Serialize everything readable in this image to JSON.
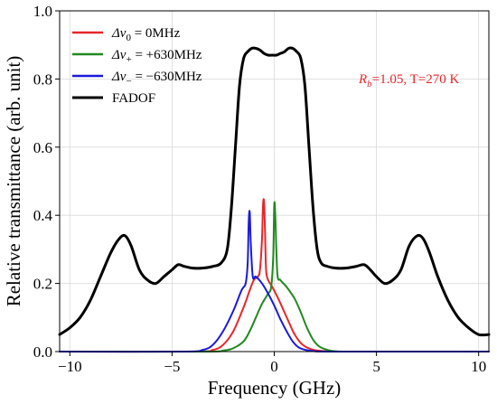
{
  "chart_data": {
    "type": "line",
    "title": "",
    "xlabel": "Frequency (GHz)",
    "ylabel": "Relative transmittance (arb. unit)",
    "xlim": [
      -10.5,
      10.5
    ],
    "ylim": [
      0,
      1.0
    ],
    "xticks": [
      -10,
      -5,
      0,
      5,
      10
    ],
    "xtick_labels": [
      "−10",
      "−5",
      "0",
      "5",
      "10"
    ],
    "yticks": [
      0.0,
      0.2,
      0.4,
      0.6,
      0.8,
      1.0
    ],
    "ytick_labels": [
      "0.0",
      "0.2",
      "0.4",
      "0.6",
      "0.8",
      "1.0"
    ],
    "grid": true,
    "legend_position": "top-left",
    "annotation": {
      "text_main": "R",
      "text_sub": "b",
      "text_rest": "=1.05, T=270 K",
      "color": "#e8262a"
    },
    "series": [
      {
        "name_prefix": "Δv",
        "name_sub": "0",
        "name_rest": " = 0MHz",
        "color": "#e8262a",
        "x": [
          -10.5,
          -4,
          -3,
          -2.5,
          -2,
          -1.5,
          -1.2,
          -1.0,
          -0.8,
          -0.7,
          -0.6,
          -0.55,
          -0.5,
          -0.45,
          -0.4,
          -0.3,
          -0.1,
          0.2,
          0.5,
          0.8,
          1.0,
          1.3,
          1.6,
          2.0,
          2.5,
          3.0,
          4.0,
          10.5
        ],
        "y": [
          0,
          0,
          0.005,
          0.02,
          0.06,
          0.13,
          0.18,
          0.21,
          0.22,
          0.24,
          0.33,
          0.43,
          0.44,
          0.35,
          0.24,
          0.21,
          0.19,
          0.155,
          0.115,
          0.075,
          0.05,
          0.025,
          0.012,
          0.004,
          0.001,
          0,
          0,
          0
        ]
      },
      {
        "name_prefix": "Δv",
        "name_sub": "+",
        "name_rest": " = +630MHz",
        "color": "#1f8a1f",
        "x": [
          -10.5,
          -3.5,
          -2.5,
          -2,
          -1.5,
          -1.2,
          -0.9,
          -0.6,
          -0.3,
          -0.15,
          -0.05,
          0,
          0.05,
          0.15,
          0.3,
          0.6,
          1.0,
          1.3,
          1.6,
          1.9,
          2.2,
          2.6,
          3.0,
          4.0,
          10.5
        ],
        "y": [
          0,
          0,
          0.003,
          0.01,
          0.03,
          0.06,
          0.1,
          0.14,
          0.17,
          0.19,
          0.28,
          0.43,
          0.4,
          0.23,
          0.21,
          0.19,
          0.155,
          0.115,
          0.07,
          0.035,
          0.015,
          0.005,
          0.001,
          0,
          0
        ]
      },
      {
        "name_prefix": "Δv",
        "name_sub": "−",
        "name_rest": " = −630MHz",
        "color": "#1a1adc",
        "x": [
          -10.5,
          -4.5,
          -3.5,
          -3,
          -2.5,
          -2,
          -1.6,
          -1.4,
          -1.3,
          -1.25,
          -1.2,
          -1.15,
          -1.05,
          -0.9,
          -0.6,
          -0.3,
          0,
          0.3,
          0.6,
          0.9,
          1.2,
          1.6,
          2.0,
          3.0,
          10.5
        ],
        "y": [
          0,
          0,
          0.005,
          0.02,
          0.06,
          0.12,
          0.18,
          0.2,
          0.26,
          0.38,
          0.41,
          0.32,
          0.22,
          0.22,
          0.2,
          0.17,
          0.135,
          0.095,
          0.06,
          0.03,
          0.012,
          0.004,
          0.001,
          0,
          0
        ]
      },
      {
        "name": "FADOF",
        "color": "#000000",
        "x": [
          -10.5,
          -10,
          -9.5,
          -9,
          -8.5,
          -8,
          -7.6,
          -7.3,
          -7.0,
          -6.6,
          -6.2,
          -5.8,
          -5.4,
          -5.0,
          -4.7,
          -4.4,
          -4.0,
          -3.5,
          -3.0,
          -2.6,
          -2.3,
          -2.1,
          -1.9,
          -1.7,
          -1.5,
          -1.3,
          -1.1,
          -0.9,
          -0.7,
          -0.5,
          -0.3,
          -0.1,
          0.1,
          0.3,
          0.5,
          0.7,
          0.9,
          1.1,
          1.3,
          1.5,
          1.7,
          1.9,
          2.1,
          2.3,
          2.6,
          3.0,
          3.5,
          4.0,
          4.4,
          4.7,
          5.0,
          5.4,
          5.8,
          6.2,
          6.6,
          7.0,
          7.3,
          7.6,
          8.0,
          8.5,
          9.0,
          9.5,
          10.0,
          10.5
        ],
        "y": [
          0.05,
          0.07,
          0.1,
          0.15,
          0.22,
          0.29,
          0.33,
          0.34,
          0.31,
          0.24,
          0.21,
          0.2,
          0.22,
          0.24,
          0.255,
          0.25,
          0.245,
          0.245,
          0.25,
          0.26,
          0.3,
          0.42,
          0.6,
          0.78,
          0.86,
          0.88,
          0.89,
          0.89,
          0.885,
          0.875,
          0.87,
          0.87,
          0.87,
          0.875,
          0.88,
          0.89,
          0.89,
          0.88,
          0.86,
          0.78,
          0.6,
          0.42,
          0.3,
          0.26,
          0.25,
          0.245,
          0.245,
          0.25,
          0.255,
          0.24,
          0.22,
          0.2,
          0.21,
          0.24,
          0.31,
          0.34,
          0.33,
          0.29,
          0.22,
          0.15,
          0.1,
          0.07,
          0.05,
          0.05
        ]
      }
    ]
  }
}
